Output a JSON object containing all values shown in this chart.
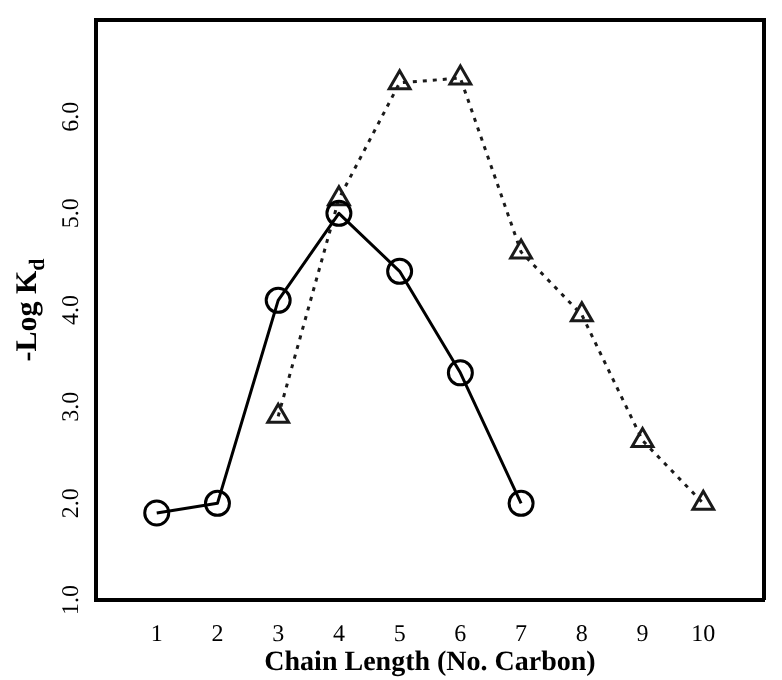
{
  "chart_data": {
    "type": "line",
    "xlabel": "Chain Length (No. Carbon)",
    "ylabel": "-Log K$_{d}$",
    "xlim": [
      0,
      11
    ],
    "xticks": [
      1,
      2,
      3,
      4,
      5,
      6,
      7,
      8,
      9,
      10
    ],
    "ylim": [
      1,
      7
    ],
    "yticks": [
      {
        "value": 1,
        "label": "1.0"
      },
      {
        "value": 2,
        "label": "2.0"
      },
      {
        "value": 3,
        "label": "3.0"
      },
      {
        "value": 4,
        "label": "4.0"
      },
      {
        "value": 5,
        "label": "5.0"
      },
      {
        "value": 6,
        "label": "6.0"
      }
    ],
    "grid": false,
    "legend": false,
    "series": [
      {
        "color": "#000000",
        "marker": "circle",
        "line_style": "solid",
        "x": [
          1,
          2,
          3,
          4,
          5,
          6,
          7
        ],
        "values": [
          1.9,
          2.0,
          4.1,
          5.0,
          4.4,
          3.35,
          2.0
        ]
      },
      {
        "color": "#1a1a1a",
        "marker": "triangle",
        "line_style": "dotted",
        "x": [
          3,
          4,
          5,
          6,
          7,
          8,
          9,
          10
        ],
        "values": [
          2.9,
          5.15,
          6.35,
          6.4,
          4.6,
          3.95,
          2.65,
          2.0
        ]
      }
    ]
  }
}
